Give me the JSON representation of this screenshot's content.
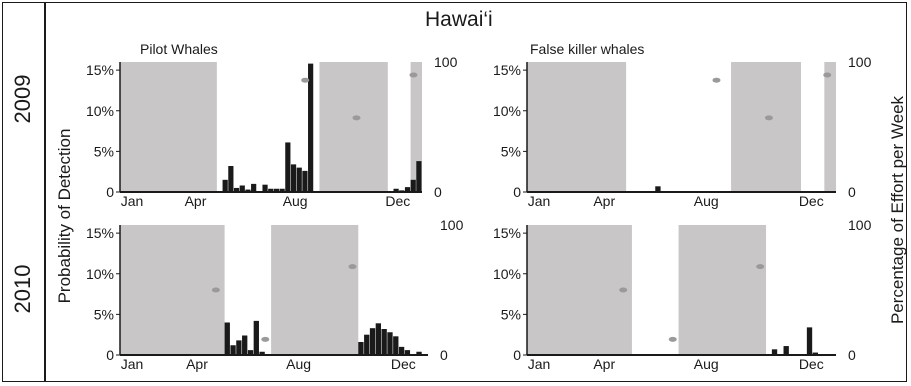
{
  "figure": {
    "region_title": "Hawai‘i",
    "left_axis_title": "Probability of Detection",
    "right_axis_title": "Percentage of Effort per Week",
    "row_labels": [
      "2009",
      "2010"
    ],
    "colors": {
      "shading": "#c8c6c6",
      "bars": "#1a1a1a",
      "effort_marker": "#9a9a9a",
      "axis": "#1a1a1a"
    }
  },
  "chart_data": [
    {
      "type": "bar",
      "title": "Pilot Whales",
      "year": "2009",
      "x_ticks": [
        "Jan",
        "Apr",
        "Aug",
        "Dec"
      ],
      "y_ticks_left": [
        "0",
        "5%",
        "10%",
        "15%"
      ],
      "y_ticks_right": [
        "0",
        "100"
      ],
      "ylim_left": [
        0,
        16
      ],
      "ylim_right": [
        0,
        100
      ],
      "x_range_weeks": [
        1,
        53
      ],
      "shaded_weeks": [
        [
          1,
          17
        ],
        [
          36,
          47
        ],
        [
          52,
          53
        ]
      ],
      "weekly_detection_percent": [
        {
          "week": 19,
          "value": 1.5
        },
        {
          "week": 20,
          "value": 3.2
        },
        {
          "week": 21,
          "value": 0.5
        },
        {
          "week": 22,
          "value": 0.8
        },
        {
          "week": 23,
          "value": 0.3
        },
        {
          "week": 24,
          "value": 1.0
        },
        {
          "week": 26,
          "value": 0.9
        },
        {
          "week": 27,
          "value": 0.4
        },
        {
          "week": 28,
          "value": 0.4
        },
        {
          "week": 29,
          "value": 0.4
        },
        {
          "week": 30,
          "value": 6.1
        },
        {
          "week": 31,
          "value": 3.4
        },
        {
          "week": 32,
          "value": 3.0
        },
        {
          "week": 33,
          "value": 2.6
        },
        {
          "week": 34,
          "value": 15.8
        },
        {
          "week": 49,
          "value": 0.4
        },
        {
          "week": 50,
          "value": 0.2
        },
        {
          "week": 51,
          "value": 0.6
        },
        {
          "week": 52,
          "value": 1.5
        },
        {
          "week": 53,
          "value": 3.8
        }
      ],
      "effort_percent": [
        {
          "week": 33.5,
          "value": 86
        },
        {
          "week": 42.5,
          "value": 57
        },
        {
          "week": 52.5,
          "value": 90
        }
      ]
    },
    {
      "type": "bar",
      "title": "False killer whales",
      "year": "2009",
      "x_ticks": [
        "Jan",
        "Apr",
        "Aug",
        "Dec"
      ],
      "y_ticks_left": [
        "0",
        "5%",
        "10%",
        "15%"
      ],
      "y_ticks_right": [
        "0",
        "100"
      ],
      "ylim_left": [
        0,
        16
      ],
      "ylim_right": [
        0,
        100
      ],
      "x_range_weeks": [
        1,
        53
      ],
      "shaded_weeks": [
        [
          1,
          17
        ],
        [
          36,
          47
        ],
        [
          52,
          53
        ]
      ],
      "weekly_detection_percent": [
        {
          "week": 23,
          "value": 0.7
        }
      ],
      "effort_percent": [
        {
          "week": 33.5,
          "value": 86
        },
        {
          "week": 42.5,
          "value": 57
        },
        {
          "week": 52.5,
          "value": 90
        }
      ]
    },
    {
      "type": "bar",
      "title": "",
      "year": "2010",
      "x_ticks": [
        "Jan",
        "Apr",
        "Aug",
        "Dec"
      ],
      "y_ticks_left": [
        "0",
        "5%",
        "10%",
        "15%"
      ],
      "y_ticks_right": [
        "0",
        "100"
      ],
      "ylim_left": [
        0,
        16
      ],
      "ylim_right": [
        0,
        100
      ],
      "x_range_weeks": [
        1,
        53
      ],
      "shaded_weeks": [
        [
          1,
          18
        ],
        [
          27,
          41
        ]
      ],
      "weekly_detection_percent": [
        {
          "week": 19,
          "value": 4.0
        },
        {
          "week": 20,
          "value": 1.2
        },
        {
          "week": 21,
          "value": 1.8
        },
        {
          "week": 22,
          "value": 2.4
        },
        {
          "week": 23,
          "value": 0.6
        },
        {
          "week": 24,
          "value": 4.2
        },
        {
          "week": 25,
          "value": 0.4
        },
        {
          "week": 42,
          "value": 1.6
        },
        {
          "week": 43,
          "value": 2.5
        },
        {
          "week": 44,
          "value": 3.3
        },
        {
          "week": 45,
          "value": 3.9
        },
        {
          "week": 46,
          "value": 3.2
        },
        {
          "week": 47,
          "value": 2.8
        },
        {
          "week": 48,
          "value": 2.3
        },
        {
          "week": 49,
          "value": 1.0
        },
        {
          "week": 50,
          "value": 0.6
        },
        {
          "week": 51,
          "value": 0.1
        },
        {
          "week": 52,
          "value": 0.4
        }
      ],
      "effort_percent": [
        {
          "week": 17.5,
          "value": 50
        },
        {
          "week": 26,
          "value": 12
        },
        {
          "week": 41,
          "value": 68
        }
      ]
    },
    {
      "type": "bar",
      "title": "",
      "year": "2010",
      "x_ticks": [
        "Jan",
        "Apr",
        "Aug",
        "Dec"
      ],
      "y_ticks_left": [
        "0",
        "5%",
        "10%",
        "15%"
      ],
      "y_ticks_right": [
        "0",
        "100"
      ],
      "ylim_left": [
        0,
        16
      ],
      "ylim_right": [
        0,
        100
      ],
      "x_range_weeks": [
        1,
        53
      ],
      "shaded_weeks": [
        [
          1,
          18
        ],
        [
          27,
          41
        ]
      ],
      "weekly_detection_percent": [
        {
          "week": 43,
          "value": 0.7
        },
        {
          "week": 45,
          "value": 1.1
        },
        {
          "week": 49,
          "value": 3.4
        },
        {
          "week": 50,
          "value": 0.3
        }
      ],
      "effort_percent": [
        {
          "week": 17.5,
          "value": 50
        },
        {
          "week": 26,
          "value": 12
        },
        {
          "week": 41,
          "value": 68
        }
      ]
    }
  ]
}
